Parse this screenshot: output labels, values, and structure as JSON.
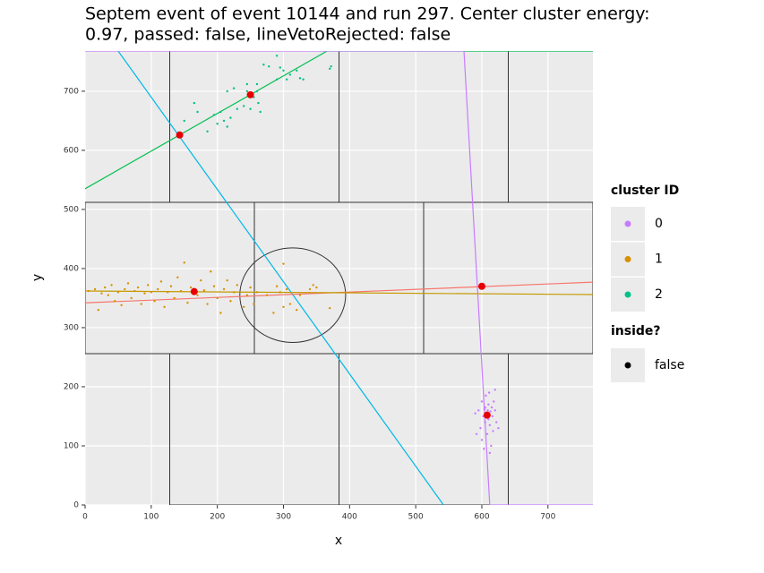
{
  "chart_data": {
    "type": "scatter",
    "title": [
      "Septem event of event 10144 and run 297. Center cluster energy:",
      "0.97, passed: false, lineVetoRejected: false"
    ],
    "x_label": "x",
    "y_label": "y",
    "xlim": [
      0,
      768
    ],
    "ylim": [
      0,
      768
    ],
    "xticks": [
      0,
      100,
      200,
      300,
      400,
      500,
      600,
      700
    ],
    "yticks": [
      0,
      100,
      200,
      300,
      400,
      500,
      600,
      700
    ],
    "grid": true,
    "legend_title": "cluster ID",
    "series": [
      {
        "name": "0",
        "color": "#c77cff",
        "x": [
          595,
          598,
          600,
          600,
          602,
          603,
          605,
          605,
          606,
          607,
          608,
          609,
          610,
          610,
          611,
          612,
          613,
          614,
          615,
          616,
          617,
          618,
          620,
          622,
          625,
          590,
          592,
          620,
          612,
          604
        ],
        "y": [
          160,
          130,
          110,
          175,
          150,
          95,
          165,
          140,
          185,
          155,
          120,
          160,
          170,
          145,
          190,
          135,
          158,
          100,
          165,
          150,
          125,
          175,
          160,
          140,
          130,
          155,
          120,
          195,
          88,
          162
        ]
      },
      {
        "name": "1",
        "color": "#d89000",
        "x": [
          5,
          15,
          20,
          25,
          30,
          35,
          40,
          45,
          50,
          55,
          60,
          65,
          70,
          75,
          80,
          85,
          90,
          95,
          100,
          105,
          110,
          115,
          120,
          125,
          130,
          135,
          140,
          145,
          150,
          155,
          160,
          170,
          175,
          180,
          185,
          190,
          195,
          200,
          205,
          210,
          215,
          220,
          225,
          230,
          240,
          245,
          250,
          255,
          260,
          275,
          290,
          295,
          300,
          305,
          310,
          320,
          325,
          340,
          345,
          350,
          370,
          300,
          285
        ],
        "y": [
          362,
          365,
          330,
          358,
          368,
          355,
          372,
          345,
          360,
          338,
          365,
          375,
          350,
          362,
          368,
          340,
          358,
          372,
          360,
          345,
          365,
          378,
          335,
          360,
          370,
          350,
          385,
          362,
          410,
          342,
          368,
          355,
          380,
          363,
          340,
          395,
          370,
          350,
          325,
          365,
          380,
          345,
          360,
          372,
          335,
          355,
          368,
          340,
          360,
          355,
          370,
          360,
          408,
          365,
          340,
          330,
          355,
          365,
          372,
          368,
          333,
          335,
          325
        ]
      },
      {
        "name": "2",
        "color": "#00c08b",
        "x": [
          150,
          165,
          170,
          185,
          195,
          200,
          205,
          210,
          215,
          220,
          215,
          225,
          230,
          240,
          245,
          245,
          250,
          255,
          260,
          262,
          265,
          260,
          270,
          278,
          290,
          295,
          300,
          305,
          310,
          320,
          325,
          330,
          370,
          372,
          290
        ],
        "y": [
          650,
          680,
          665,
          632,
          660,
          645,
          665,
          650,
          640,
          655,
          700,
          705,
          670,
          675,
          700,
          712,
          670,
          690,
          700,
          680,
          665,
          712,
          745,
          742,
          760,
          740,
          735,
          720,
          728,
          735,
          722,
          720,
          738,
          742,
          720
        ]
      }
    ],
    "centers": {
      "color": "#e80000",
      "x": [
        608,
        165,
        600,
        143,
        250
      ],
      "y": [
        152,
        361,
        370,
        626,
        694
      ]
    },
    "inside_legend": {
      "title": "inside?",
      "label": "false",
      "color": "#000000"
    },
    "lines": [
      {
        "color": "#00b8e7",
        "x": [
          50,
          542
        ],
        "y": [
          768,
          0
        ]
      },
      {
        "color": "#00c050",
        "x": [
          0,
          366,
          768
        ],
        "y": [
          535,
          768,
          768
        ]
      },
      {
        "color": "#c77cff",
        "x": [
          0,
          573,
          612,
          768
        ],
        "y": [
          768,
          768,
          0,
          0
        ]
      },
      {
        "color": "#f8766d",
        "x": [
          0,
          768
        ],
        "y": [
          342,
          377
        ]
      },
      {
        "color": "#c49a00",
        "x": [
          0,
          768
        ],
        "y": [
          362,
          356
        ]
      }
    ],
    "chips": [
      {
        "x0": 128,
        "x1": 384,
        "y0": 512,
        "y1": 768
      },
      {
        "x0": 384,
        "x1": 640,
        "y0": 512,
        "y1": 768
      },
      {
        "x0": 0,
        "x1": 256,
        "y0": 256,
        "y1": 512
      },
      {
        "x0": 256,
        "x1": 512,
        "y0": 256,
        "y1": 512
      },
      {
        "x0": 512,
        "x1": 768,
        "y0": 256,
        "y1": 512
      },
      {
        "x0": 128,
        "x1": 384,
        "y0": 0,
        "y1": 256
      },
      {
        "x0": 384,
        "x1": 640,
        "y0": 0,
        "y1": 256
      }
    ],
    "circle": {
      "x": 314,
      "y": 355,
      "r": 80
    }
  }
}
